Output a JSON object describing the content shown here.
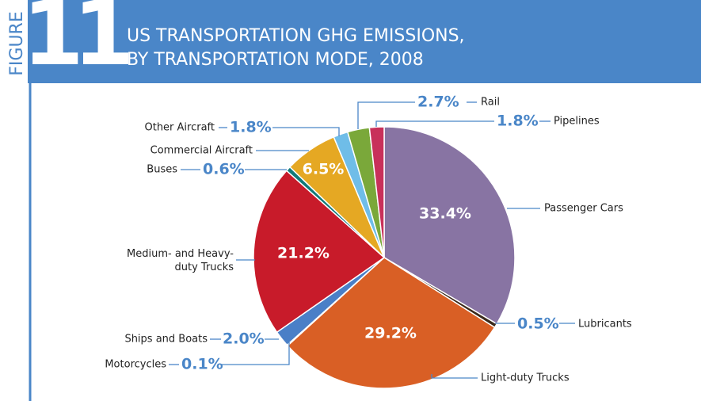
{
  "chart_data": {
    "type": "pie",
    "figure_label": "FIGURE",
    "figure_number": "11",
    "title": [
      "US TRANSPORTATION GHG EMISSIONS,",
      "BY TRANSPORTATION MODE, 2008"
    ],
    "categories": [
      "Passenger Cars",
      "Lubricants",
      "Light-duty Trucks",
      "Motorcycles",
      "Ships and Boats",
      "Medium- and Heavy-duty Trucks",
      "Buses",
      "Commercial Aircraft",
      "Other Aircraft",
      "Rail",
      "Pipelines"
    ],
    "values": [
      33.4,
      0.5,
      29.2,
      0.1,
      2.0,
      21.2,
      0.6,
      6.5,
      1.8,
      2.7,
      1.8
    ],
    "value_labels": [
      "33.4%",
      "0.5%",
      "29.2%",
      "0.1%",
      "2.0%",
      "21.2%",
      "0.6%",
      "6.5%",
      "1.8%",
      "2.7%",
      "1.8%"
    ],
    "colors": [
      "#8874a3",
      "#3b2a1c",
      "#d95f25",
      "#a0a4aa",
      "#4a7fc7",
      "#c81b2a",
      "#127a7a",
      "#e5a823",
      "#6fbde8",
      "#7aa83a",
      "#c8305a"
    ]
  }
}
